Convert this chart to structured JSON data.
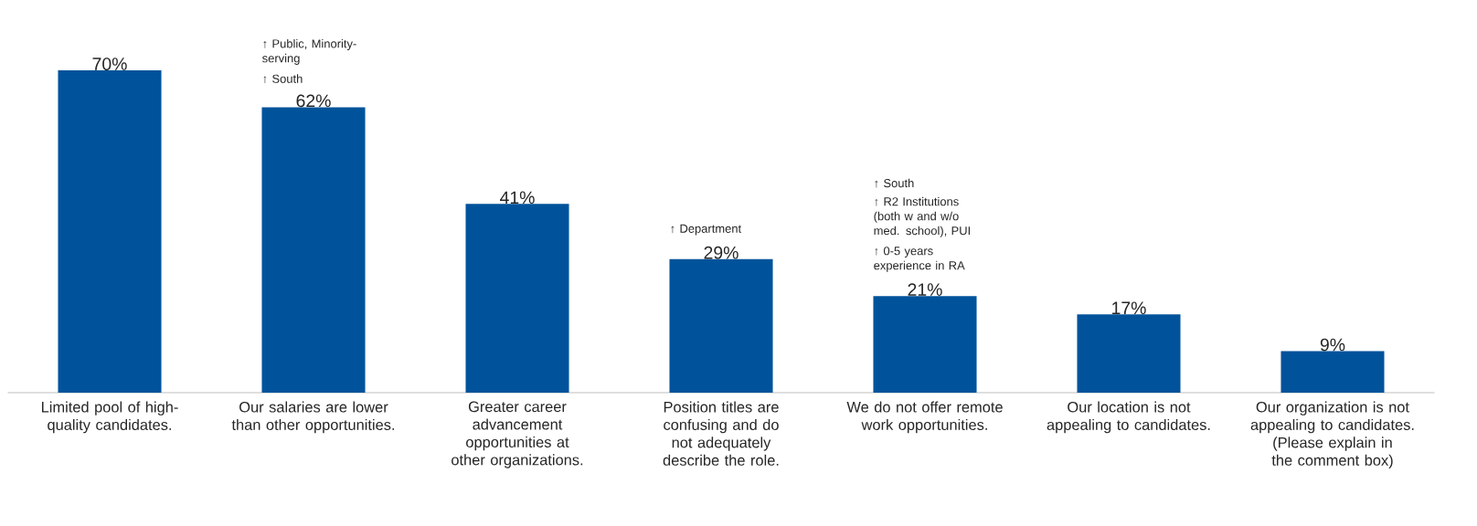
{
  "chart_data": {
    "type": "bar",
    "categories": [
      "Limited pool of high-quality candidates.",
      "Our salaries are lower than other opportunities.",
      "Greater career advancement opportunities at other organizations.",
      "Position titles are confusing and do not adequately describe the role.",
      "We do not offer remote work opportunities.",
      "Our location is not appealing to candidates.",
      "Our organization is not appealing to candidates. (Please explain in the comment box)"
    ],
    "values": [
      70,
      62,
      41,
      29,
      21,
      17,
      9
    ],
    "value_labels": [
      "70%",
      "62%",
      "41%",
      "29%",
      "21%",
      "17%",
      "9%"
    ],
    "color": "#00539b",
    "annotations": [
      "↑ Public, Minority-serving",
      "↑ South",
      "↑ Department",
      "↑ South",
      "↑ R2 Institutions (both w and w/o med. school), PUI",
      "↑ 0-5 years experience in RA"
    ]
  }
}
